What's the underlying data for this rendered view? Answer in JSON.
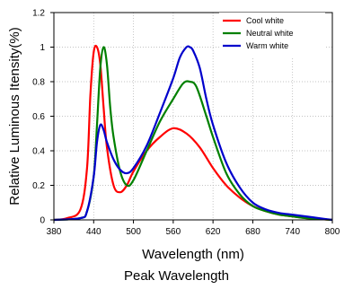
{
  "caption": "Peak Wavelength",
  "chart_data": {
    "type": "line",
    "title": "",
    "xlabel": "Wavelength (nm)",
    "ylabel": "Relative Luminous Itensity(%)",
    "xlim": [
      380,
      800
    ],
    "ylim": [
      0,
      1.2
    ],
    "xticks": [
      380,
      440,
      500,
      560,
      620,
      680,
      740,
      800
    ],
    "xtick_labels": [
      "380",
      "440",
      "500",
      "560",
      "620",
      "680",
      "740",
      "800"
    ],
    "yticks": [
      0,
      0.2,
      0.4,
      0.6,
      0.8,
      1,
      1.2
    ],
    "ytick_labels": [
      "0",
      "0.2",
      "0.4",
      "0.6",
      "0.8",
      "1",
      "1.2"
    ],
    "grid": true,
    "legend_position": "top-right",
    "series": [
      {
        "name": "Cool white",
        "color": "#ff0000",
        "x": [
          380,
          400,
          420,
          430,
          435,
          440,
          445,
          450,
          455,
          460,
          470,
          480,
          490,
          500,
          520,
          540,
          560,
          580,
          600,
          620,
          640,
          660,
          680,
          700,
          720,
          740,
          760,
          780,
          800
        ],
        "y": [
          0,
          0.01,
          0.06,
          0.3,
          0.72,
          0.97,
          1.0,
          0.9,
          0.65,
          0.42,
          0.2,
          0.16,
          0.2,
          0.28,
          0.4,
          0.48,
          0.53,
          0.5,
          0.42,
          0.3,
          0.2,
          0.13,
          0.08,
          0.05,
          0.03,
          0.02,
          0.01,
          0.005,
          0
        ]
      },
      {
        "name": "Neutral white",
        "color": "#008000",
        "x": [
          380,
          420,
          430,
          440,
          445,
          450,
          455,
          460,
          465,
          470,
          480,
          490,
          500,
          520,
          540,
          560,
          575,
          585,
          595,
          610,
          620,
          640,
          660,
          680,
          700,
          720,
          740,
          760,
          800
        ],
        "y": [
          0,
          0.01,
          0.05,
          0.25,
          0.55,
          0.88,
          1.0,
          0.9,
          0.65,
          0.48,
          0.28,
          0.2,
          0.23,
          0.4,
          0.57,
          0.7,
          0.79,
          0.8,
          0.77,
          0.6,
          0.48,
          0.27,
          0.15,
          0.08,
          0.05,
          0.03,
          0.02,
          0.01,
          0
        ]
      },
      {
        "name": "Warm white",
        "color": "#0000cc",
        "x": [
          380,
          420,
          430,
          440,
          445,
          450,
          455,
          460,
          470,
          480,
          490,
          500,
          520,
          540,
          560,
          570,
          580,
          585,
          590,
          600,
          610,
          620,
          640,
          660,
          680,
          700,
          720,
          740,
          760,
          780,
          800
        ],
        "y": [
          0,
          0.01,
          0.05,
          0.25,
          0.45,
          0.55,
          0.52,
          0.45,
          0.35,
          0.29,
          0.27,
          0.3,
          0.43,
          0.62,
          0.82,
          0.94,
          1.0,
          1.0,
          0.98,
          0.88,
          0.7,
          0.55,
          0.33,
          0.19,
          0.1,
          0.06,
          0.04,
          0.03,
          0.02,
          0.01,
          0
        ]
      }
    ]
  }
}
